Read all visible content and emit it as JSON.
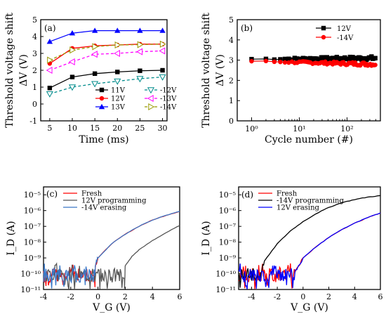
{
  "chart_data": [
    {
      "type": "line",
      "panel_label": "(a)",
      "xlabel": "Time (ms)",
      "ylabel": "Threshold voltage shift",
      "ylabel2": "ΔV (V)",
      "x": [
        5,
        10,
        15,
        20,
        25,
        30
      ],
      "xlim": [
        3,
        31
      ],
      "ylim": [
        -1,
        5
      ],
      "xticks": [
        "5",
        "10",
        "15",
        "20",
        "25",
        "30"
      ],
      "yticks": [
        "-1",
        "0",
        "1",
        "2",
        "3",
        "4",
        "5"
      ],
      "series": [
        {
          "name": "11V",
          "values": [
            0.95,
            1.6,
            1.8,
            1.9,
            1.97,
            2.0
          ],
          "color": "#000000",
          "marker": "square",
          "dash": ""
        },
        {
          "name": "12V",
          "values": [
            2.4,
            3.3,
            3.45,
            3.5,
            3.55,
            3.55
          ],
          "color": "#ff0000",
          "marker": "circle",
          "dash": ""
        },
        {
          "name": "13V",
          "values": [
            3.7,
            4.2,
            4.35,
            4.35,
            4.35,
            4.35
          ],
          "color": "#0000ff",
          "marker": "triangle",
          "dash": ""
        },
        {
          "name": "-12V",
          "values": [
            0.6,
            1.0,
            1.2,
            1.35,
            1.5,
            1.6
          ],
          "color": "#008b8b",
          "marker": "triangle-down-open",
          "dash": "4,3"
        },
        {
          "name": "-13V",
          "values": [
            2.0,
            2.5,
            2.95,
            3.0,
            3.1,
            3.15
          ],
          "color": "#ff00ff",
          "marker": "triangle-left-open",
          "dash": "4,3"
        },
        {
          "name": "-14V",
          "values": [
            2.6,
            3.2,
            3.4,
            3.5,
            3.52,
            3.55
          ],
          "color": "#999900",
          "marker": "triangle-right-open",
          "dash": "4,3"
        }
      ]
    },
    {
      "type": "line",
      "panel_label": "(b)",
      "xlabel": "Cycle number (#)",
      "ylabel": "Threshold voltage shift",
      "ylabel2": "ΔV (V)",
      "xscale": "log",
      "xlim": [
        0.5,
        500
      ],
      "ylim": [
        0,
        5
      ],
      "xticks": [
        "10⁰",
        "10¹",
        "10²"
      ],
      "yticks": [
        "0",
        "1",
        "2",
        "3",
        "4",
        "5"
      ],
      "series": [
        {
          "name": "12V",
          "color": "#000000",
          "marker": "square",
          "level": 3.05,
          "end_level": 3.1
        },
        {
          "name": "-14V",
          "color": "#ff0000",
          "marker": "circle",
          "level": 2.95,
          "end_level": 2.8
        }
      ]
    },
    {
      "type": "line",
      "panel_label": "(c)",
      "xlabel": "V_G (V)",
      "ylabel": "I_D (A)",
      "yscale": "log",
      "xlim": [
        -4,
        6
      ],
      "ylim": [
        -11,
        -4.5
      ],
      "xticks": [
        "-4",
        "-2",
        "0",
        "2",
        "4",
        "6"
      ],
      "yticks": [
        "10⁻¹¹",
        "10⁻¹⁰",
        "10⁻⁹",
        "10⁻⁸",
        "10⁻⁷",
        "10⁻⁶",
        "10⁻⁵"
      ],
      "series": [
        {
          "name": "Fresh",
          "color": "#ff0000",
          "noise_until": -0.2,
          "curve": [
            [
              -0.2,
              -9.5
            ],
            [
              0,
              -9.0
            ],
            [
              1,
              -8.1
            ],
            [
              2,
              -7.5
            ],
            [
              3,
              -7.0
            ],
            [
              4,
              -6.6
            ],
            [
              5,
              -6.3
            ],
            [
              6,
              -6.05
            ]
          ]
        },
        {
          "name": "12V programming",
          "color": "#555555",
          "noise_until": 1.95,
          "curve": [
            [
              1.95,
              -11.0
            ],
            [
              2.0,
              -9.5
            ],
            [
              2.5,
              -8.9
            ],
            [
              3,
              -8.5
            ],
            [
              4,
              -7.9
            ],
            [
              5,
              -7.4
            ],
            [
              6,
              -6.95
            ]
          ]
        },
        {
          "name": "-14V erasing",
          "color": "#3a78c8",
          "noise_until": -0.2,
          "curve": [
            [
              -0.2,
              -9.4
            ],
            [
              0,
              -9.0
            ],
            [
              1,
              -8.1
            ],
            [
              2,
              -7.5
            ],
            [
              3,
              -7.0
            ],
            [
              4,
              -6.6
            ],
            [
              5,
              -6.3
            ],
            [
              6,
              -6.05
            ]
          ]
        }
      ]
    },
    {
      "type": "line",
      "panel_label": "(d)",
      "xlabel": "V_G (V)",
      "ylabel": "I_D (A)",
      "yscale": "log",
      "xlim": [
        -5,
        6
      ],
      "ylim": [
        -11,
        -4.5
      ],
      "xticks": [
        "-4",
        "-2",
        "0",
        "2",
        "4",
        "6"
      ],
      "yticks": [
        "10⁻¹¹",
        "10⁻¹⁰",
        "10⁻⁹",
        "10⁻⁸",
        "10⁻⁷",
        "10⁻⁶",
        "10⁻⁵"
      ],
      "series": [
        {
          "name": "Fresh",
          "color": "#ff0000",
          "noise_until": -0.6,
          "curve": [
            [
              -0.6,
              -9.8
            ],
            [
              0,
              -9.0
            ],
            [
              1,
              -8.3
            ],
            [
              2,
              -7.7
            ],
            [
              3,
              -7.2
            ],
            [
              4,
              -6.8
            ],
            [
              5,
              -6.45
            ],
            [
              6,
              -6.15
            ]
          ]
        },
        {
          "name": "-14V programming",
          "color": "#000000",
          "noise_until": -3.3,
          "curve": [
            [
              -3.3,
              -10.0
            ],
            [
              -3,
              -9.2
            ],
            [
              -2,
              -8.1
            ],
            [
              -1,
              -7.3
            ],
            [
              0,
              -6.7
            ],
            [
              1,
              -6.2
            ],
            [
              2,
              -5.8
            ],
            [
              3,
              -5.5
            ],
            [
              4,
              -5.3
            ],
            [
              5,
              -5.15
            ],
            [
              6,
              -5.05
            ]
          ]
        },
        {
          "name": "12V erasing",
          "color": "#0000ff",
          "noise_until": -0.6,
          "curve": [
            [
              -0.6,
              -9.8
            ],
            [
              0,
              -9.0
            ],
            [
              1,
              -8.3
            ],
            [
              2,
              -7.7
            ],
            [
              3,
              -7.2
            ],
            [
              4,
              -6.8
            ],
            [
              5,
              -6.45
            ],
            [
              6,
              -6.15
            ]
          ]
        }
      ]
    }
  ]
}
